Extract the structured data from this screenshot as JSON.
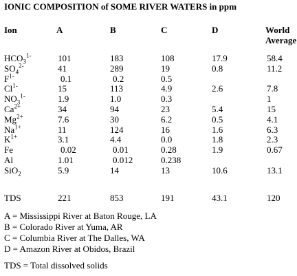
{
  "title": "IONIC COMPOSITION of SOME RIVER WATERS in ppm",
  "headers": {
    "ion": "Ion",
    "a": "A",
    "b": "B",
    "c": "C",
    "d": "D",
    "world_line1": "World",
    "world_line2": "Average"
  },
  "rows": [
    {
      "base": "HCO",
      "sub": "3",
      "sup": "1-",
      "a": "101",
      "b": "183",
      "c": "108",
      "d": "17.9",
      "w": "58.4"
    },
    {
      "base": "SO",
      "sub": "4",
      "sup": "2-",
      "a": "41",
      "b": "289",
      "c": "19",
      "d": "0.8",
      "w": "11.2"
    },
    {
      "base": "F",
      "sub": "",
      "sup": "1-",
      "a": "0.1",
      "b": "0.2",
      "c": "0.5",
      "d": "",
      "w": ""
    },
    {
      "base": "Cl",
      "sub": "",
      "sup": "1-",
      "a": "15",
      "b": "113",
      "c": "4.9",
      "d": "2.6",
      "w": "7.8"
    },
    {
      "base": "NO",
      "sub": "3",
      "sup": "1-",
      "a": "1.9",
      "b": "1.0",
      "c": "0.3",
      "d": "",
      "w": "1"
    },
    {
      "base": "Ca",
      "sub": "",
      "sup": "2+",
      "a": "34",
      "b": "94",
      "c": "23",
      "d": "5.4",
      "w": "15"
    },
    {
      "base": "Mg",
      "sub": "",
      "sup": "2+",
      "a": "7.6",
      "b": "30",
      "c": "6.2",
      "d": "0.5",
      "w": "4.1"
    },
    {
      "base": "Na",
      "sub": "",
      "sup": "1+",
      "a": "11",
      "b": "124",
      "c": "16",
      "d": "1.6",
      "w": "6.3"
    },
    {
      "base": "K",
      "sub": "",
      "sup": "1+",
      "a": "3.1",
      "b": "4.4",
      "c": "0.0",
      "d": "1.8",
      "w": "2.3"
    },
    {
      "base": "Fe",
      "sub": "",
      "sup": "",
      "a": "0.02",
      "b": "0.01",
      "c": "0.28",
      "d": "1.9",
      "w": "0.67"
    },
    {
      "base": "Al",
      "sub": "",
      "sup": "",
      "a": "1.01",
      "b": "0.012",
      "c": "0.238",
      "d": "",
      "w": ""
    },
    {
      "base": "SiO",
      "sub": "2",
      "sup": "",
      "a": "5.9",
      "b": "14",
      "c": "13",
      "d": "10.6",
      "w": "13.1"
    }
  ],
  "tds": {
    "label": "TDS",
    "a": "221",
    "b": "853",
    "c": "191",
    "d": "43.1",
    "w": "120"
  },
  "legend": [
    "A = Mississippi River at Baton Rouge, LA",
    "B = Colorado River at Yuma, AR",
    "C = Columbia River at The Dalles, WA",
    "D = Amazon River at Obidos, Brazil"
  ],
  "footnote": "TDS = Total dissolved solids"
}
